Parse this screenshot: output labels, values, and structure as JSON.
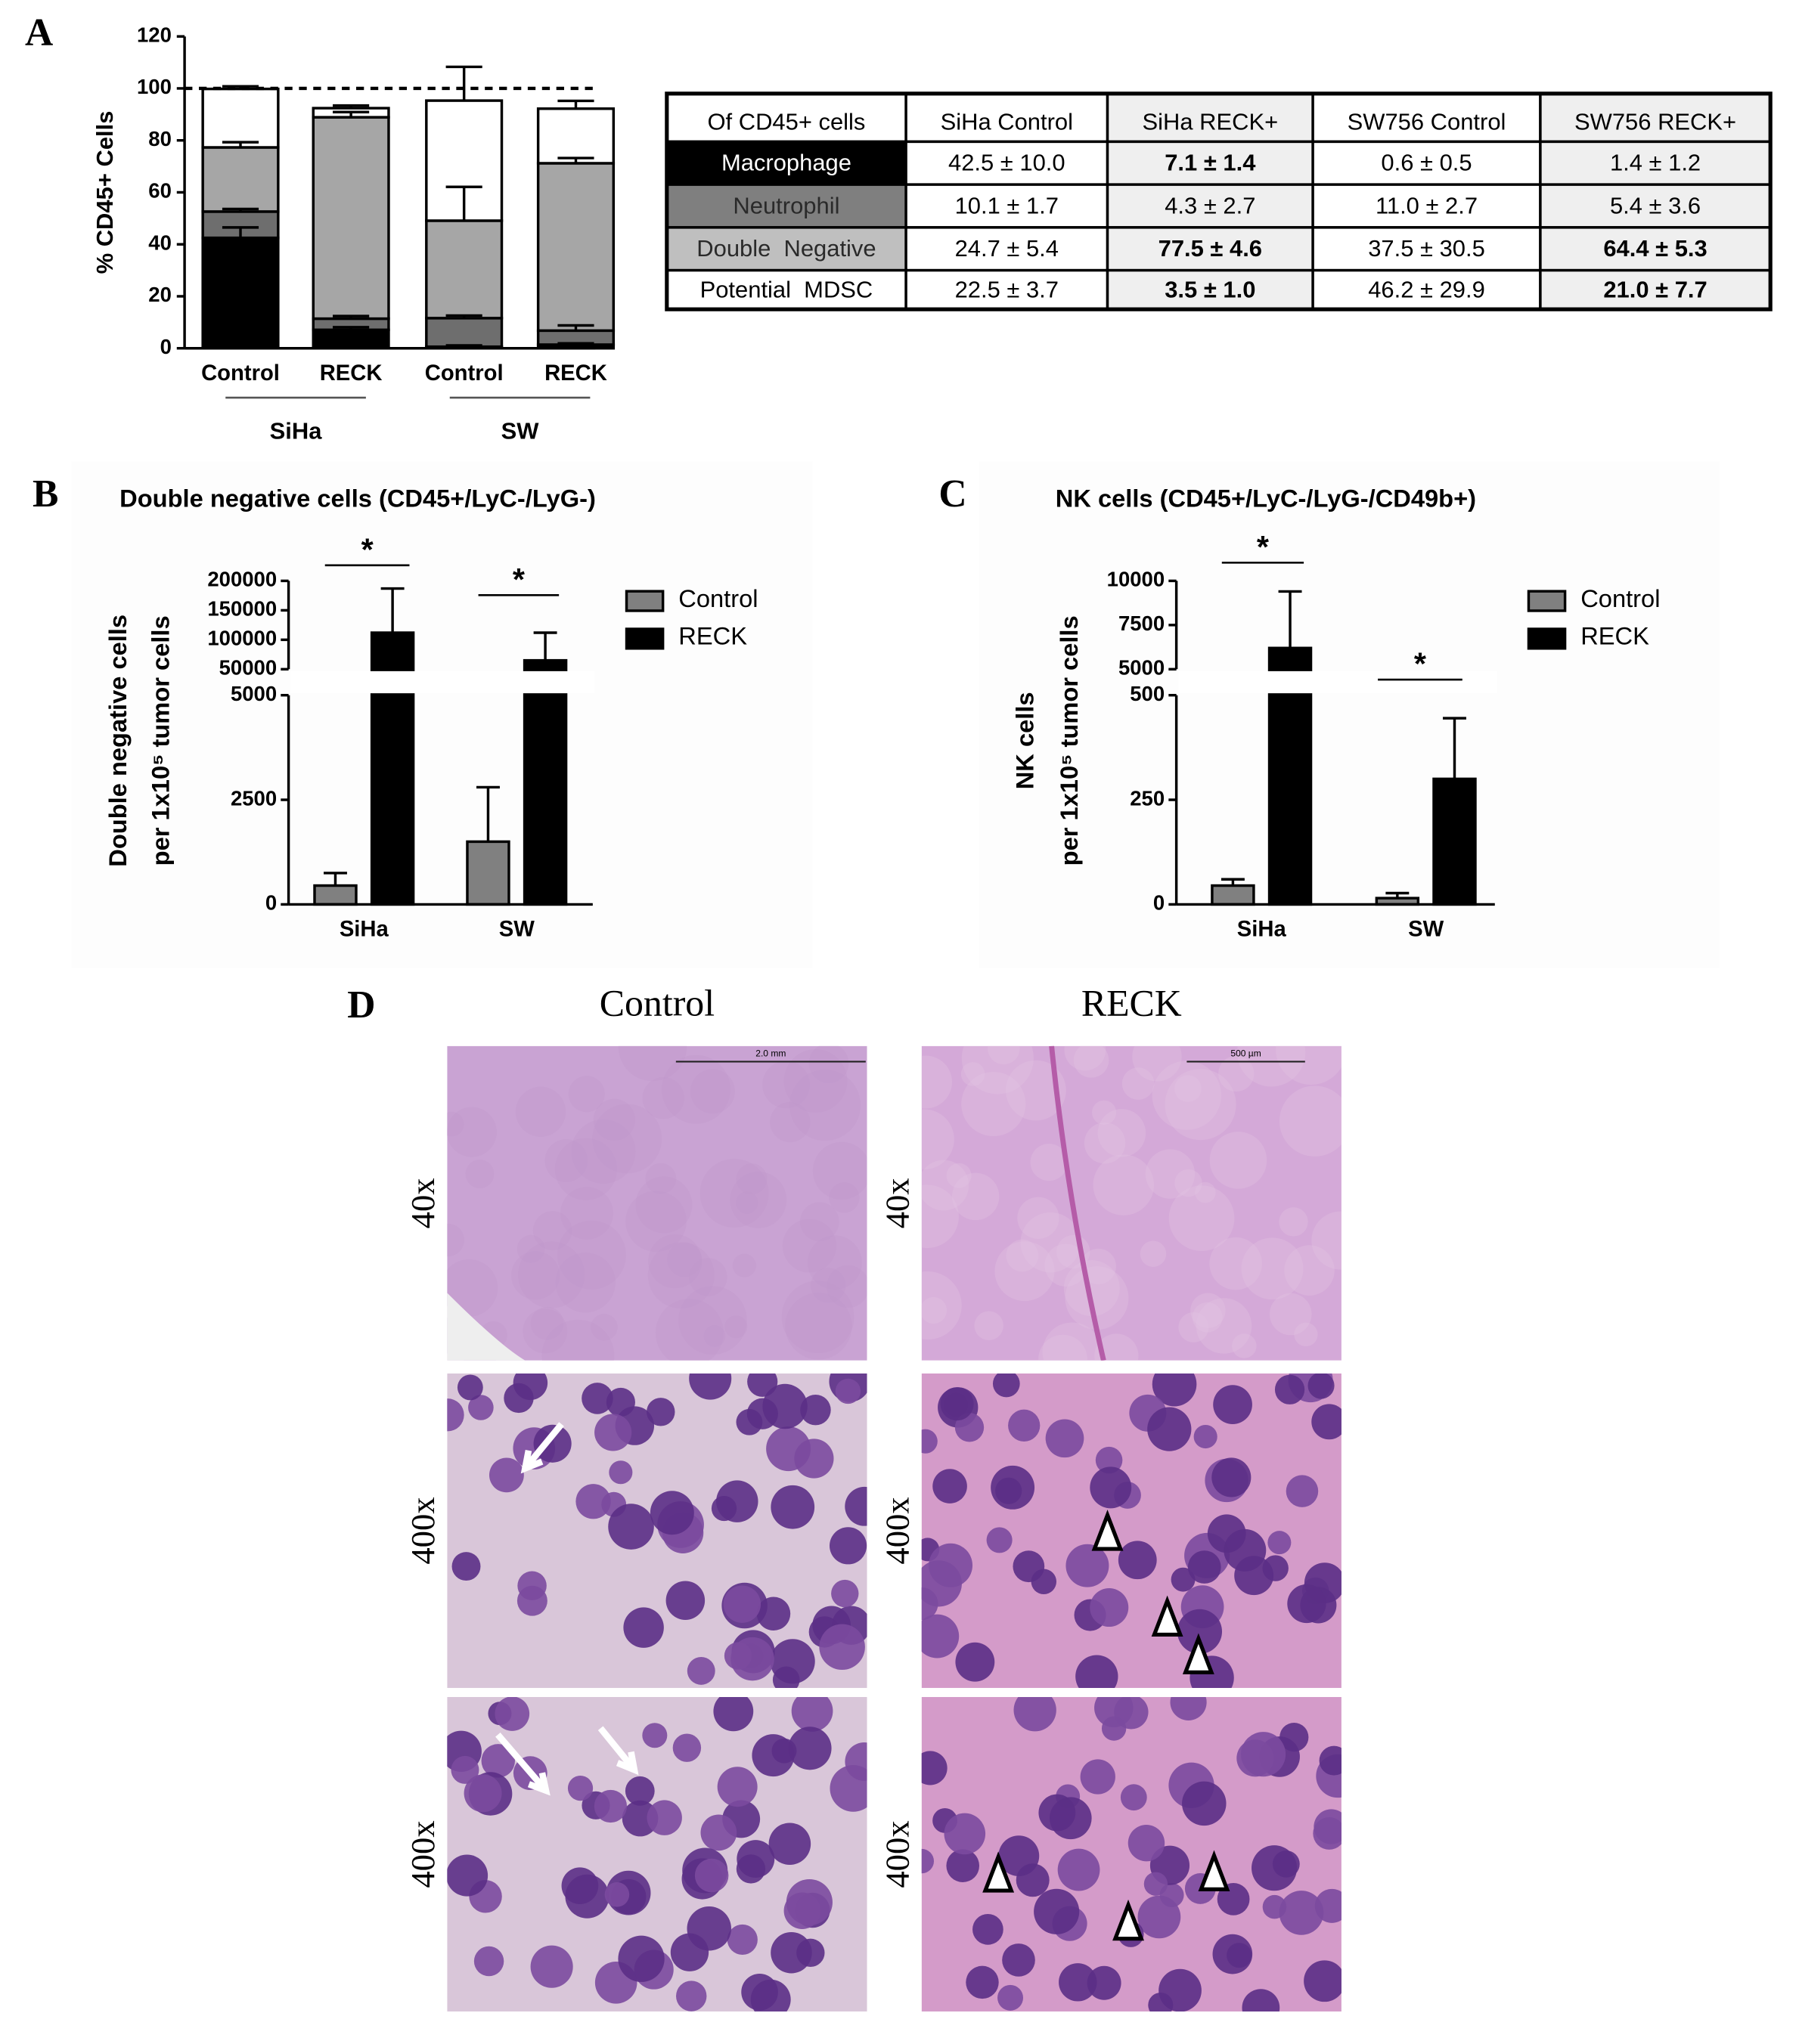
{
  "chart_data": [
    {
      "type": "stacked_bar",
      "panel_label": "A",
      "y_label": "% CD45+ Cells",
      "categories": [
        "Control",
        "RECK",
        "Control",
        "RECK"
      ],
      "group_labels": [
        "SiHa",
        "SW"
      ],
      "series": [
        {
          "name": "Macrophage",
          "color": "#000000",
          "values": [
            42.5,
            7.1,
            0.6,
            1.4
          ],
          "errors": [
            4,
            1,
            0.5,
            0.5
          ]
        },
        {
          "name": "Neutrophil",
          "color": "#6e6e6e",
          "values": [
            10.1,
            4.3,
            11.0,
            5.4
          ],
          "errors": [
            1,
            1,
            1,
            2
          ]
        },
        {
          "name": "Double Negative",
          "color": "#a6a6a6",
          "values": [
            24.7,
            77.5,
            37.5,
            64.4
          ],
          "errors": [
            2,
            2,
            13,
            2
          ]
        },
        {
          "name": "Potential MDSC",
          "color": "#ffffff",
          "values": [
            22.5,
            3.5,
            46.2,
            21.0
          ],
          "errors": [
            1,
            1,
            13,
            3
          ]
        }
      ],
      "ylim": [
        0,
        120
      ],
      "yticks": [
        0,
        20,
        40,
        60,
        80,
        100,
        120
      ],
      "reference_line": 100
    },
    {
      "type": "bar",
      "panel_label": "B",
      "title": "Double negative cells (CD45+/LyC-/LyG-)",
      "y_label": [
        "Double negative cells",
        "per 1x10⁵ tumor cells"
      ],
      "categories": [
        "SiHa",
        "SW"
      ],
      "series": [
        {
          "name": "Control",
          "color": "#808080",
          "values": [
            450,
            1500
          ],
          "errors": [
            300,
            1300
          ]
        },
        {
          "name": "RECK",
          "color": "#000000",
          "values": [
            112000,
            65000
          ],
          "errors": [
            75000,
            47000
          ]
        }
      ],
      "ylim": [
        0,
        200000
      ],
      "axis_break": [
        5000,
        50000
      ],
      "yticks": [
        0,
        2500,
        5000,
        50000,
        100000,
        150000,
        200000
      ],
      "significance": [
        "*",
        "*"
      ],
      "legend": "upper right"
    },
    {
      "type": "bar",
      "panel_label": "C",
      "title": "NK cells (CD45+/LyC-/LyG-/CD49b+)",
      "y_label": [
        "NK cells",
        "per 1x10⁵ tumor cells"
      ],
      "categories": [
        "SiHa",
        "SW"
      ],
      "series": [
        {
          "name": "Control",
          "color": "#808080",
          "values": [
            45,
            15
          ],
          "errors": [
            15,
            12
          ]
        },
        {
          "name": "RECK",
          "color": "#000000",
          "values": [
            6200,
            300
          ],
          "errors": [
            3200,
            145
          ]
        }
      ],
      "ylim": [
        0,
        10000
      ],
      "axis_break": [
        500,
        5000
      ],
      "yticks": [
        0,
        250,
        500,
        5000,
        7500,
        10000
      ],
      "significance": [
        "*",
        "*"
      ],
      "legend": "upper right"
    }
  ],
  "table": {
    "header": [
      {
        "text": "Of CD45+ cells"
      },
      {
        "text": "SiHa Control"
      },
      {
        "text": "SiHa RECK+",
        "shaded": true
      },
      {
        "text": "SW756 Control"
      },
      {
        "text": "SW756 RECK+",
        "shaded": true
      }
    ],
    "rows": [
      {
        "label": "Macrophage",
        "color": "#000000",
        "text_color": "#ffffff",
        "cells": [
          {
            "text": "42.5 ± 10.0"
          },
          {
            "text": "7.1 ± 1.4",
            "bold": true
          },
          {
            "text": "0.6 ± 0.5"
          },
          {
            "text": "1.4 ± 1.2"
          }
        ]
      },
      {
        "label": "Neutrophil",
        "color": "#7f7f7f",
        "text_color": "#2a2a2a",
        "cells": [
          {
            "text": "10.1 ± 1.7"
          },
          {
            "text": "4.3 ± 2.7"
          },
          {
            "text": "11.0 ± 2.7"
          },
          {
            "text": "5.4 ± 3.6"
          }
        ]
      },
      {
        "label": "Double  Negative",
        "color": "#bfbfbf",
        "text_color": "#2a2a2a",
        "cells": [
          {
            "text": "24.7 ± 5.4"
          },
          {
            "text": "77.5 ± 4.6",
            "bold": true
          },
          {
            "text": "37.5 ± 30.5"
          },
          {
            "text": "64.4 ± 5.3",
            "bold": true
          }
        ]
      },
      {
        "label": "Potential  MDSC",
        "color": "#ffffff",
        "text_color": "#000000",
        "cells": [
          {
            "text": "22.5 ± 3.7"
          },
          {
            "text": "3.5 ± 1.0",
            "bold": true
          },
          {
            "text": "46.2 ± 29.9"
          },
          {
            "text": "21.0 ± 7.7",
            "bold": true
          }
        ]
      }
    ]
  },
  "micrographs": {
    "panel_label": "D",
    "columns": [
      "Control",
      "RECK"
    ],
    "rows": [
      "40x",
      "400x",
      "400x"
    ],
    "scale_bars": [
      "2.0 mm",
      "500 µm"
    ]
  }
}
